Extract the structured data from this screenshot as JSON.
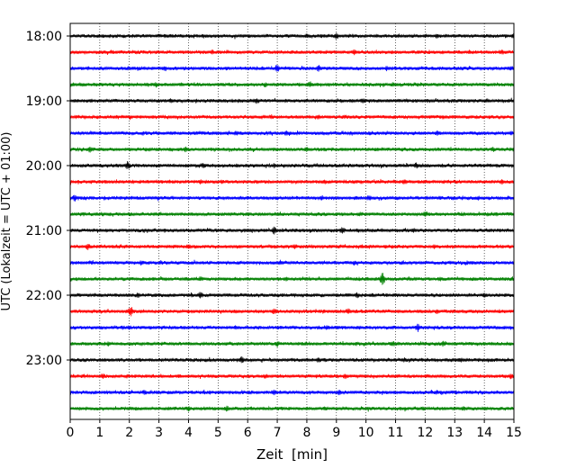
{
  "chart_data": {
    "type": "line",
    "title": "",
    "xlabel": "Zeit  [min]",
    "ylabel": "UTC (Lokalzeit = UTC + 01:00)",
    "xlim": [
      0,
      15
    ],
    "x_ticks": [
      "0",
      "1",
      "2",
      "3",
      "4",
      "5",
      "6",
      "7",
      "8",
      "9",
      "10",
      "11",
      "12",
      "13",
      "14",
      "15"
    ],
    "y_tick_labels": [
      "18:00",
      "19:00",
      "20:00",
      "21:00",
      "22:00",
      "23:00"
    ],
    "rows_per_hour": 4,
    "row_minutes": 15,
    "grid": "vertical dotted lines at each minute",
    "row_colors": [
      "#000000",
      "#ff0000",
      "#0000ff",
      "#008000"
    ],
    "series": [
      {
        "start": "18:00",
        "spikes": [
          [
            4.5,
            0.25
          ],
          [
            8.0,
            0.3
          ],
          [
            9.0,
            0.5
          ],
          [
            12.4,
            0.3
          ],
          [
            15.0,
            0.45
          ]
        ]
      },
      {
        "start": "18:15",
        "spikes": [
          [
            4.8,
            0.3
          ],
          [
            9.6,
            0.35
          ],
          [
            13.5,
            0.3
          ],
          [
            14.6,
            0.35
          ]
        ]
      },
      {
        "start": "18:30",
        "spikes": [
          [
            3.2,
            0.3
          ],
          [
            7.0,
            0.65
          ],
          [
            8.4,
            0.5
          ],
          [
            10.7,
            0.3
          ],
          [
            14.9,
            0.35
          ]
        ]
      },
      {
        "start": "18:45",
        "spikes": [
          [
            2.9,
            0.35
          ],
          [
            6.6,
            0.35
          ],
          [
            8.1,
            0.45
          ],
          [
            10.9,
            0.25
          ]
        ]
      },
      {
        "start": "19:00",
        "spikes": [
          [
            3.4,
            0.3
          ],
          [
            6.3,
            0.35
          ],
          [
            9.9,
            0.35
          ],
          [
            14.1,
            0.25
          ]
        ]
      },
      {
        "start": "19:15",
        "spikes": [
          [
            2.8,
            0.25
          ],
          [
            6.8,
            0.3
          ],
          [
            8.4,
            0.35
          ],
          [
            12.6,
            0.25
          ]
        ]
      },
      {
        "start": "19:30",
        "spikes": [
          [
            5.6,
            0.3
          ],
          [
            7.3,
            0.35
          ],
          [
            12.4,
            0.3
          ],
          [
            14.9,
            0.25
          ]
        ]
      },
      {
        "start": "19:45",
        "spikes": [
          [
            0.65,
            0.45
          ],
          [
            3.9,
            0.35
          ],
          [
            8.0,
            0.35
          ],
          [
            14.3,
            0.3
          ]
        ]
      },
      {
        "start": "20:00",
        "spikes": [
          [
            1.95,
            0.65
          ],
          [
            4.5,
            0.4
          ],
          [
            6.9,
            0.3
          ],
          [
            11.7,
            0.4
          ]
        ]
      },
      {
        "start": "20:15",
        "spikes": [
          [
            4.4,
            0.3
          ],
          [
            8.6,
            0.3
          ],
          [
            11.3,
            0.35
          ],
          [
            14.6,
            0.3
          ]
        ]
      },
      {
        "start": "20:30",
        "spikes": [
          [
            0.15,
            0.45
          ],
          [
            8.5,
            0.35
          ],
          [
            10.1,
            0.45
          ],
          [
            13.8,
            0.25
          ]
        ]
      },
      {
        "start": "20:45",
        "spikes": [
          [
            6.0,
            0.25
          ],
          [
            9.8,
            0.25
          ],
          [
            12.0,
            0.35
          ],
          [
            14.4,
            0.25
          ]
        ]
      },
      {
        "start": "21:00",
        "spikes": [
          [
            6.9,
            0.55
          ],
          [
            9.2,
            0.55
          ],
          [
            11.6,
            0.3
          ],
          [
            14.2,
            0.25
          ]
        ]
      },
      {
        "start": "21:15",
        "spikes": [
          [
            0.6,
            0.45
          ],
          [
            4.0,
            0.35
          ],
          [
            7.6,
            0.35
          ],
          [
            12.3,
            0.3
          ]
        ]
      },
      {
        "start": "21:30",
        "spikes": [
          [
            2.4,
            0.3
          ],
          [
            7.1,
            0.35
          ],
          [
            9.6,
            0.3
          ],
          [
            13.6,
            0.25
          ]
        ]
      },
      {
        "start": "21:45",
        "spikes": [
          [
            4.4,
            0.35
          ],
          [
            7.3,
            0.3
          ],
          [
            10.55,
            1.1
          ],
          [
            12.5,
            0.3
          ]
        ]
      },
      {
        "start": "22:00",
        "spikes": [
          [
            2.3,
            0.35
          ],
          [
            4.4,
            0.45
          ],
          [
            9.7,
            0.35
          ],
          [
            14.0,
            0.3
          ]
        ]
      },
      {
        "start": "22:15",
        "spikes": [
          [
            2.05,
            0.8
          ],
          [
            6.9,
            0.4
          ],
          [
            9.4,
            0.45
          ],
          [
            12.4,
            0.3
          ]
        ]
      },
      {
        "start": "22:30",
        "spikes": [
          [
            2.0,
            0.3
          ],
          [
            5.6,
            0.3
          ],
          [
            8.7,
            0.3
          ],
          [
            11.75,
            0.6
          ]
        ]
      },
      {
        "start": "22:45",
        "spikes": [
          [
            1.3,
            0.35
          ],
          [
            7.0,
            0.4
          ],
          [
            10.9,
            0.45
          ],
          [
            12.6,
            0.35
          ]
        ]
      },
      {
        "start": "23:00",
        "spikes": [
          [
            5.8,
            0.5
          ],
          [
            8.4,
            0.35
          ],
          [
            11.3,
            0.3
          ],
          [
            13.2,
            0.3
          ]
        ]
      },
      {
        "start": "23:15",
        "spikes": [
          [
            1.1,
            0.35
          ],
          [
            6.6,
            0.3
          ],
          [
            9.3,
            0.35
          ],
          [
            14.9,
            0.35
          ]
        ]
      },
      {
        "start": "23:30",
        "spikes": [
          [
            2.5,
            0.3
          ],
          [
            6.9,
            0.35
          ],
          [
            9.1,
            0.35
          ],
          [
            12.4,
            0.3
          ]
        ]
      },
      {
        "start": "23:45",
        "spikes": [
          [
            4.0,
            0.35
          ],
          [
            5.3,
            0.4
          ],
          [
            8.6,
            0.3
          ],
          [
            13.3,
            0.3
          ]
        ]
      }
    ]
  }
}
